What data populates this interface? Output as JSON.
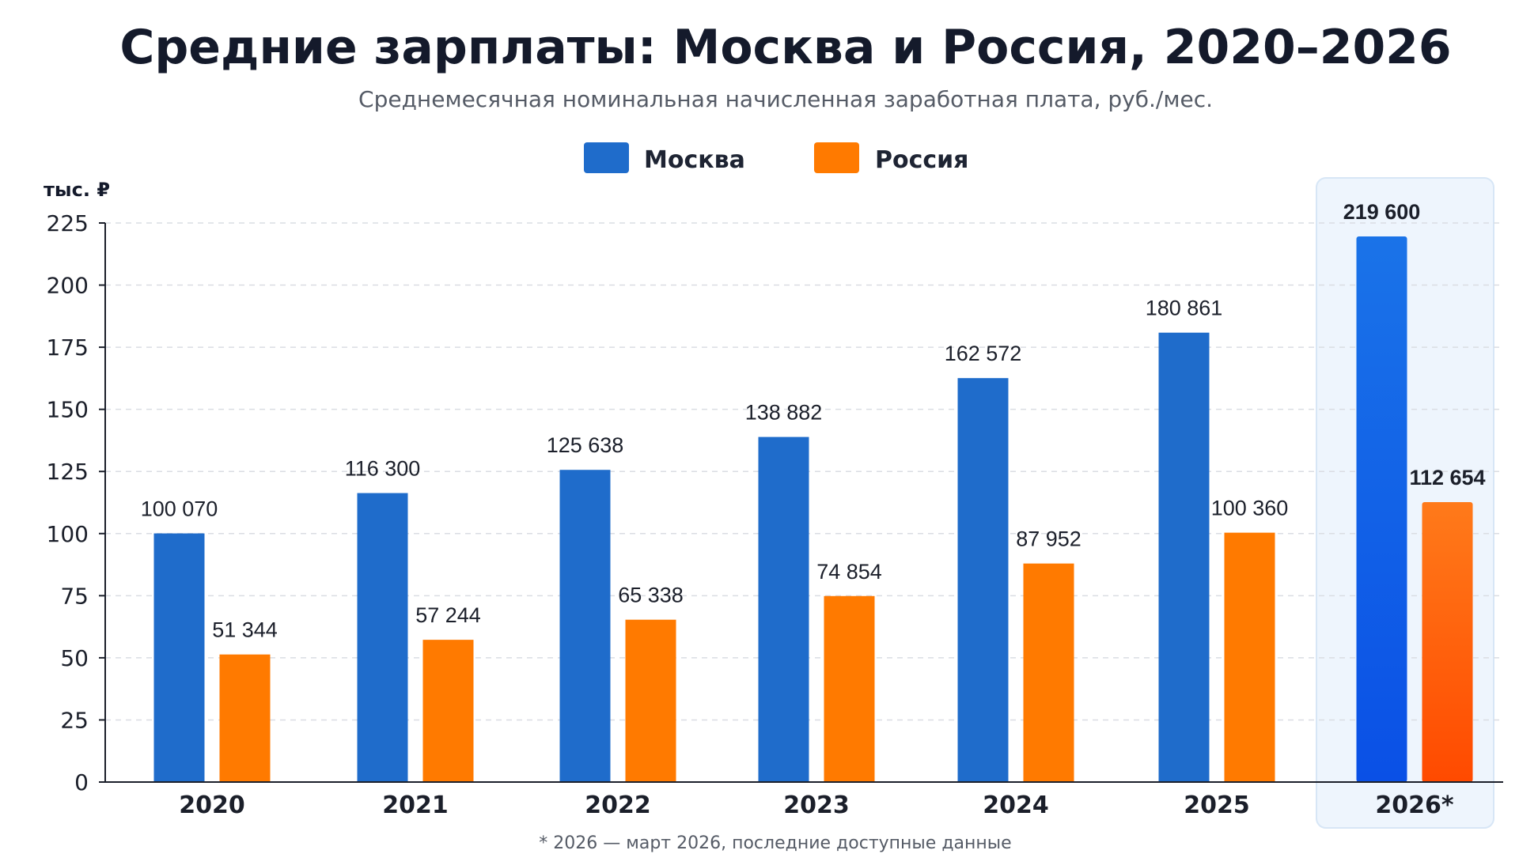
{
  "chart_data": {
    "type": "bar",
    "title": "Средние зарплаты: Москва и Россия, 2020–2026",
    "subtitle": "Среднемесячная номинальная начисленная заработная плата, руб./мес.",
    "unit_label": "тыс. ₽",
    "categories": [
      "2020",
      "2021",
      "2022",
      "2023",
      "2024",
      "2025",
      "2026*"
    ],
    "series": [
      {
        "name": "Москва",
        "color": "#1f6ccb",
        "values": [
          100070,
          116300,
          125638,
          138882,
          162572,
          180861,
          219600
        ],
        "labels": [
          "100 070",
          "116 300",
          "125 638",
          "138 882",
          "162 572",
          "180 861",
          "219 600"
        ]
      },
      {
        "name": "Россия",
        "color": "#ff7a00",
        "values": [
          51344,
          57244,
          65338,
          74854,
          87952,
          100360,
          112654
        ],
        "labels": [
          "51 344",
          "57 244",
          "65 338",
          "74 854",
          "87 952",
          "100 360",
          "112 654"
        ]
      }
    ],
    "y_ticks": [
      "0",
      "25",
      "50",
      "75",
      "100",
      "125",
      "150",
      "175",
      "200",
      "225"
    ],
    "ylim": [
      0,
      225
    ],
    "value_scale": 1000,
    "grid": true,
    "legend_position": "top-center",
    "highlight_category": "2026*",
    "highlight_colors": {
      "Москва": "#0a6cf0",
      "Россия": "#ff5a0a"
    },
    "footnote": "* 2026 — март 2026, последние доступные данные"
  }
}
